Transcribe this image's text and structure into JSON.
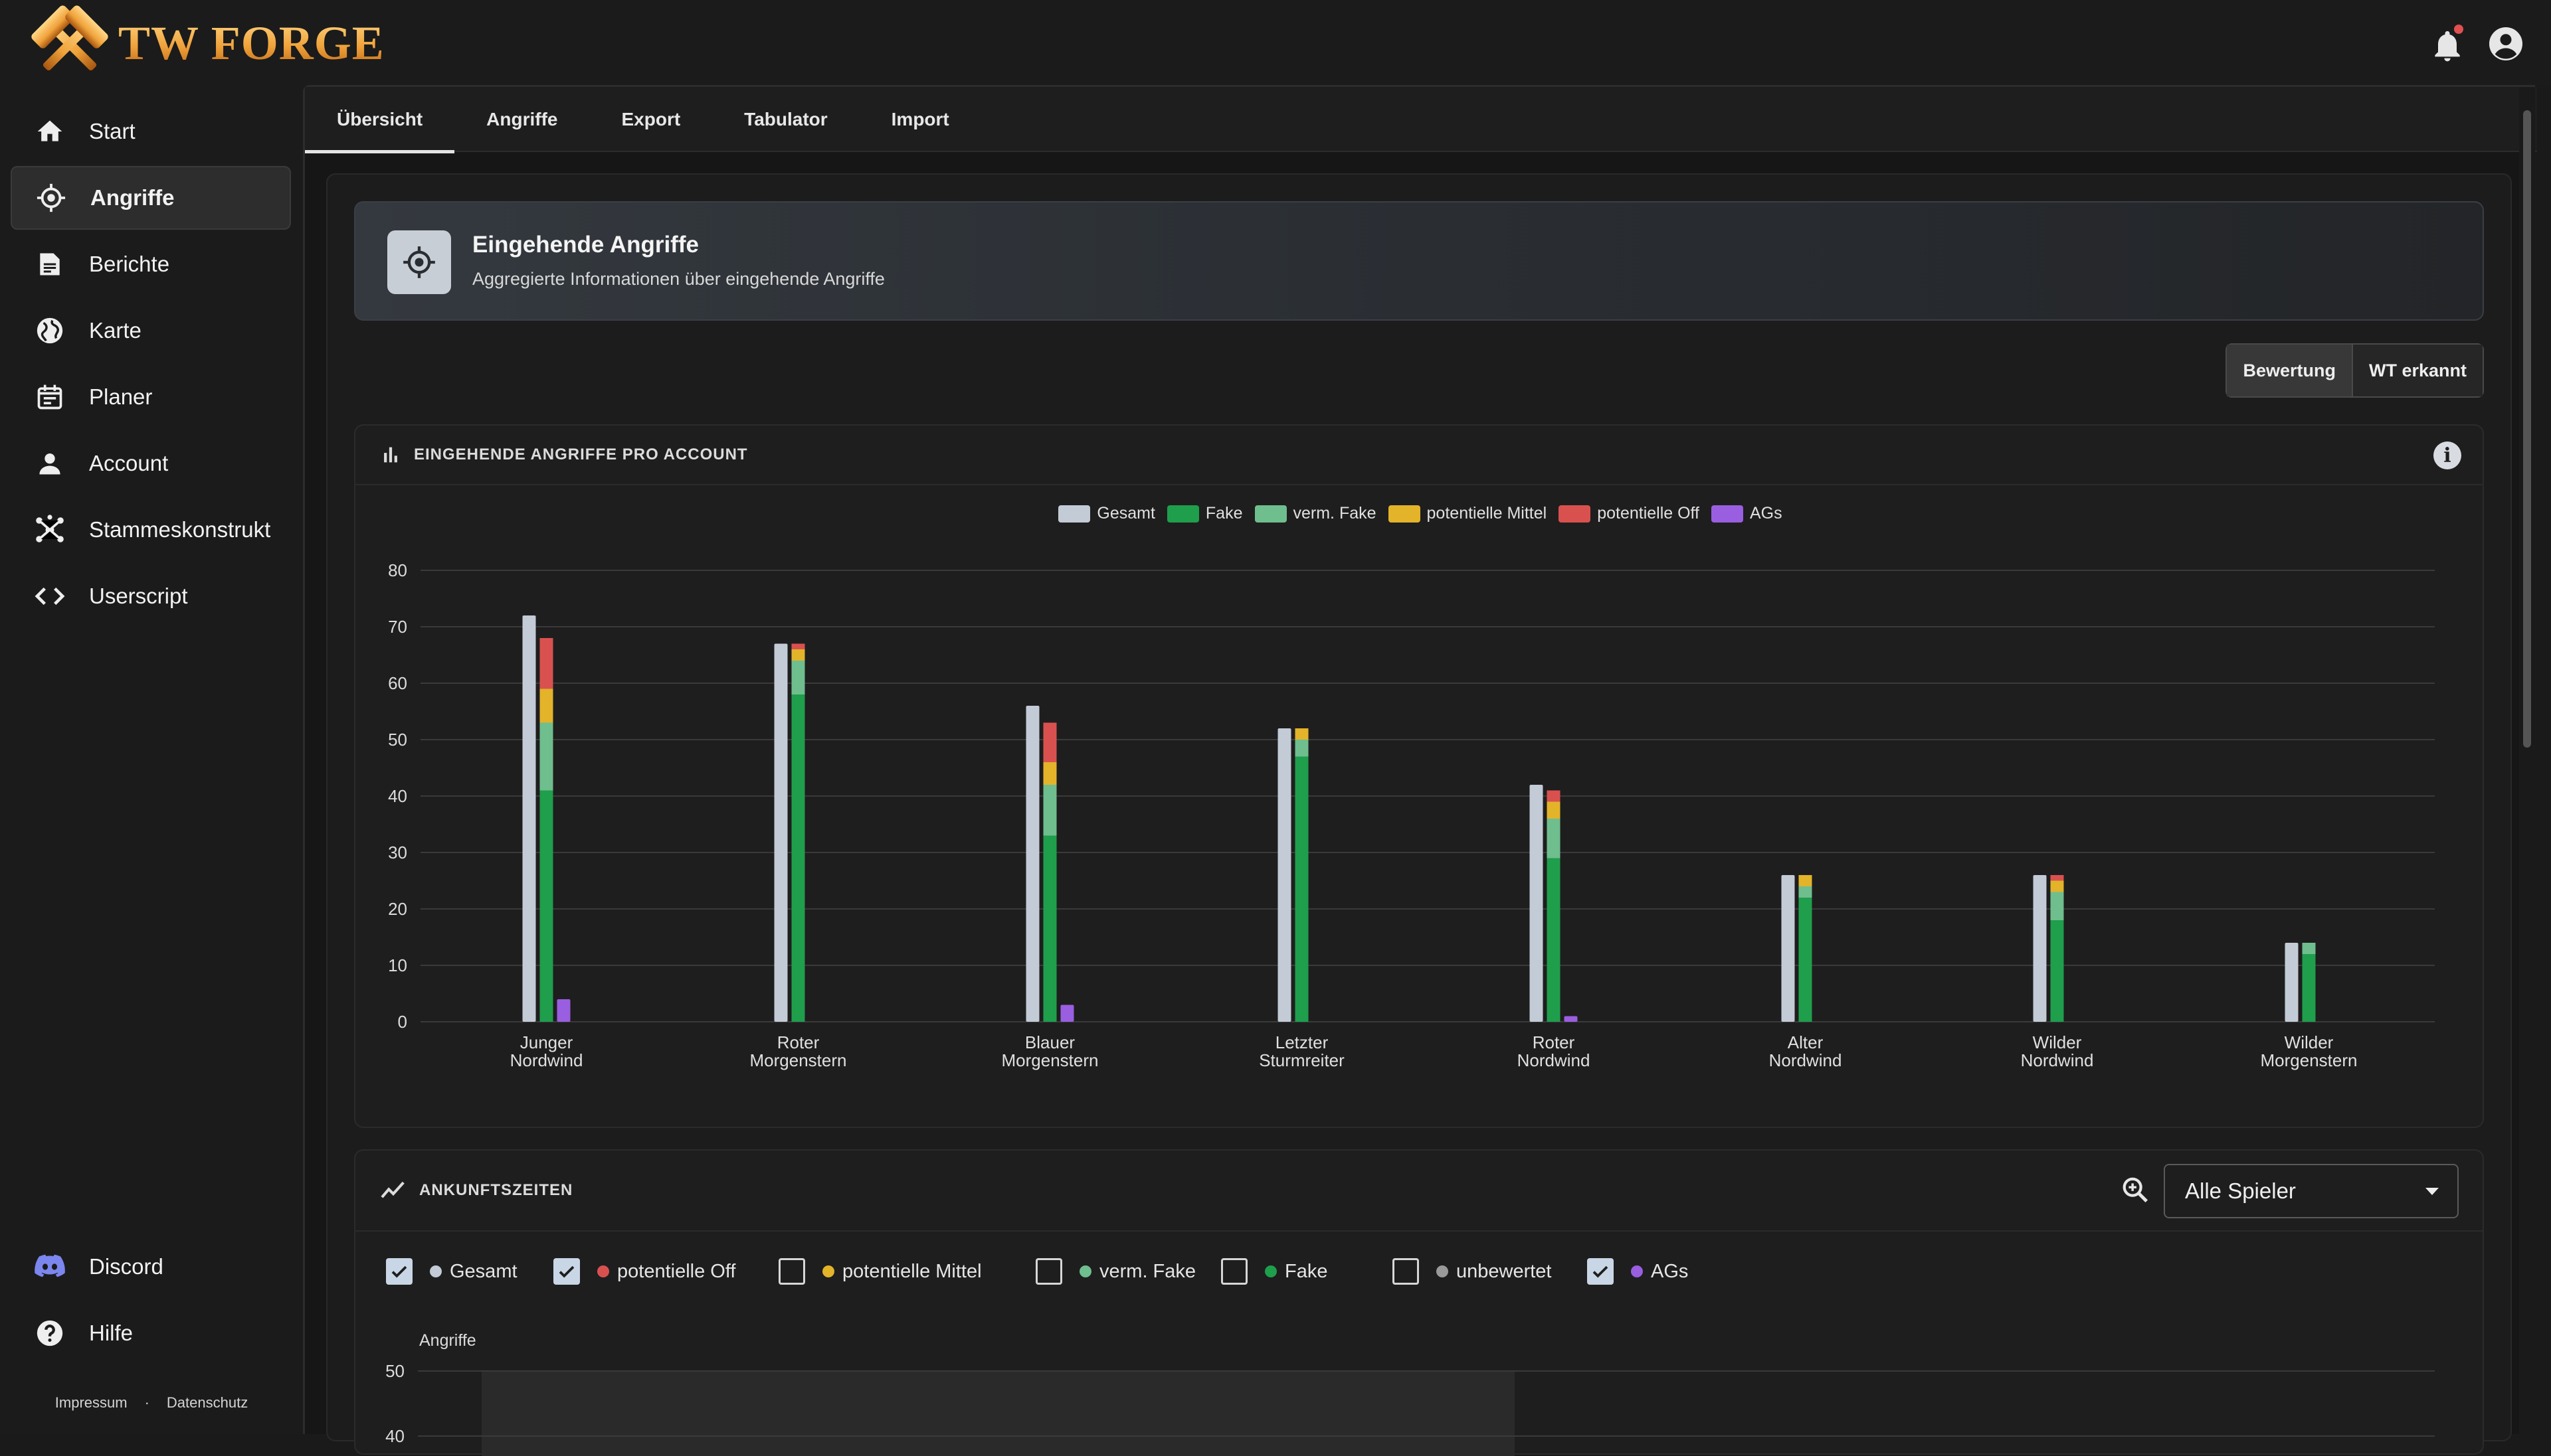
{
  "app": {
    "logo_text": "TW FORGE"
  },
  "sidebar": {
    "items": [
      {
        "label": "Start",
        "icon": "home-icon"
      },
      {
        "label": "Angriffe",
        "icon": "crosshair-icon",
        "active": true
      },
      {
        "label": "Berichte",
        "icon": "report-icon"
      },
      {
        "label": "Karte",
        "icon": "globe-icon"
      },
      {
        "label": "Planer",
        "icon": "calendar-icon"
      },
      {
        "label": "Account",
        "icon": "person-icon"
      },
      {
        "label": "Stammeskonstrukt",
        "icon": "network-icon"
      },
      {
        "label": "Userscript",
        "icon": "code-icon"
      }
    ],
    "bottom_items": [
      {
        "label": "Discord",
        "icon": "discord-icon"
      },
      {
        "label": "Hilfe",
        "icon": "help-icon"
      }
    ],
    "footer": {
      "impressum": "Impressum",
      "separator": "·",
      "datenschutz": "Datenschutz"
    }
  },
  "tabs": [
    {
      "label": "Übersicht",
      "active": true
    },
    {
      "label": "Angriffe"
    },
    {
      "label": "Export"
    },
    {
      "label": "Tabulator"
    },
    {
      "label": "Import"
    }
  ],
  "header": {
    "title": "Eingehende Angriffe",
    "subtitle": "Aggregierte Informationen über eingehende Angriffe"
  },
  "toggle": {
    "options": [
      "Bewertung",
      "WT erkannt"
    ],
    "active_index": 0
  },
  "colors": {
    "gesamt": "#c3cbd6",
    "fake": "#1f9e4c",
    "verm_fake": "#6fbe8e",
    "potentielle_mittel": "#e3b32a",
    "potentielle_off": "#d9514f",
    "ags": "#9a5ee0"
  },
  "chart_card": {
    "title": "EINGEHENDE ANGRIFFE PRO ACCOUNT"
  },
  "chart_data": {
    "type": "bar",
    "stacked_series": [
      "fake",
      "verm_fake",
      "potentielle_mittel",
      "potentielle_off"
    ],
    "legend": [
      {
        "name": "Gesamt",
        "key": "gesamt"
      },
      {
        "name": "Fake",
        "key": "fake"
      },
      {
        "name": "verm. Fake",
        "key": "verm_fake"
      },
      {
        "name": "potentielle Mittel",
        "key": "potentielle_mittel"
      },
      {
        "name": "potentielle Off",
        "key": "potentielle_off"
      },
      {
        "name": "AGs",
        "key": "ags"
      }
    ],
    "categories": [
      [
        "Junger",
        "Nordwind"
      ],
      [
        "Roter",
        "Morgenstern"
      ],
      [
        "Blauer",
        "Morgenstern"
      ],
      [
        "Letzter",
        "Sturmreiter"
      ],
      [
        "Roter",
        "Nordwind"
      ],
      [
        "Alter",
        "Nordwind"
      ],
      [
        "Wilder",
        "Nordwind"
      ],
      [
        "Wilder",
        "Morgenstern"
      ]
    ],
    "series": [
      {
        "name": "Gesamt",
        "key": "gesamt",
        "values": [
          72,
          67,
          56,
          52,
          42,
          26,
          26,
          14
        ]
      },
      {
        "name": "Fake",
        "key": "fake",
        "values": [
          41,
          58,
          33,
          47,
          29,
          22,
          18,
          12
        ]
      },
      {
        "name": "verm. Fake",
        "key": "verm_fake",
        "values": [
          12,
          6,
          9,
          3,
          7,
          2,
          5,
          2
        ]
      },
      {
        "name": "potentielle Mittel",
        "key": "potentielle_mittel",
        "values": [
          6,
          2,
          4,
          2,
          3,
          2,
          2,
          0
        ]
      },
      {
        "name": "potentielle Off",
        "key": "potentielle_off",
        "values": [
          9,
          1,
          7,
          0,
          2,
          0,
          1,
          0
        ]
      },
      {
        "name": "AGs",
        "key": "ags",
        "values": [
          4,
          0,
          3,
          0,
          1,
          0,
          0,
          0
        ]
      }
    ],
    "ylim": [
      0,
      80
    ],
    "yticks": [
      0,
      10,
      20,
      30,
      40,
      50,
      60,
      70,
      80
    ],
    "grid": true,
    "legend_position": "top-center"
  },
  "arrivals_card": {
    "title": "ANKUNFTSZEITEN",
    "select_value": "Alle Spieler",
    "filters": [
      {
        "label": "Gesamt",
        "checked": true,
        "color": "#c3cbd6"
      },
      {
        "label": "potentielle Off",
        "checked": true,
        "color": "#d9514f"
      },
      {
        "label": "potentielle Mittel",
        "checked": false,
        "color": "#e3b32a"
      },
      {
        "label": "verm. Fake",
        "checked": false,
        "color": "#6fbe8e"
      },
      {
        "label": "Fake",
        "checked": false,
        "color": "#1f9e4c"
      },
      {
        "label": "unbewertet",
        "checked": false,
        "color": "#9a9a9a"
      },
      {
        "label": "AGs",
        "checked": true,
        "color": "#9a5ee0"
      }
    ],
    "ylabel": "Angriffe",
    "yticks_visible": [
      "50",
      "40"
    ]
  }
}
